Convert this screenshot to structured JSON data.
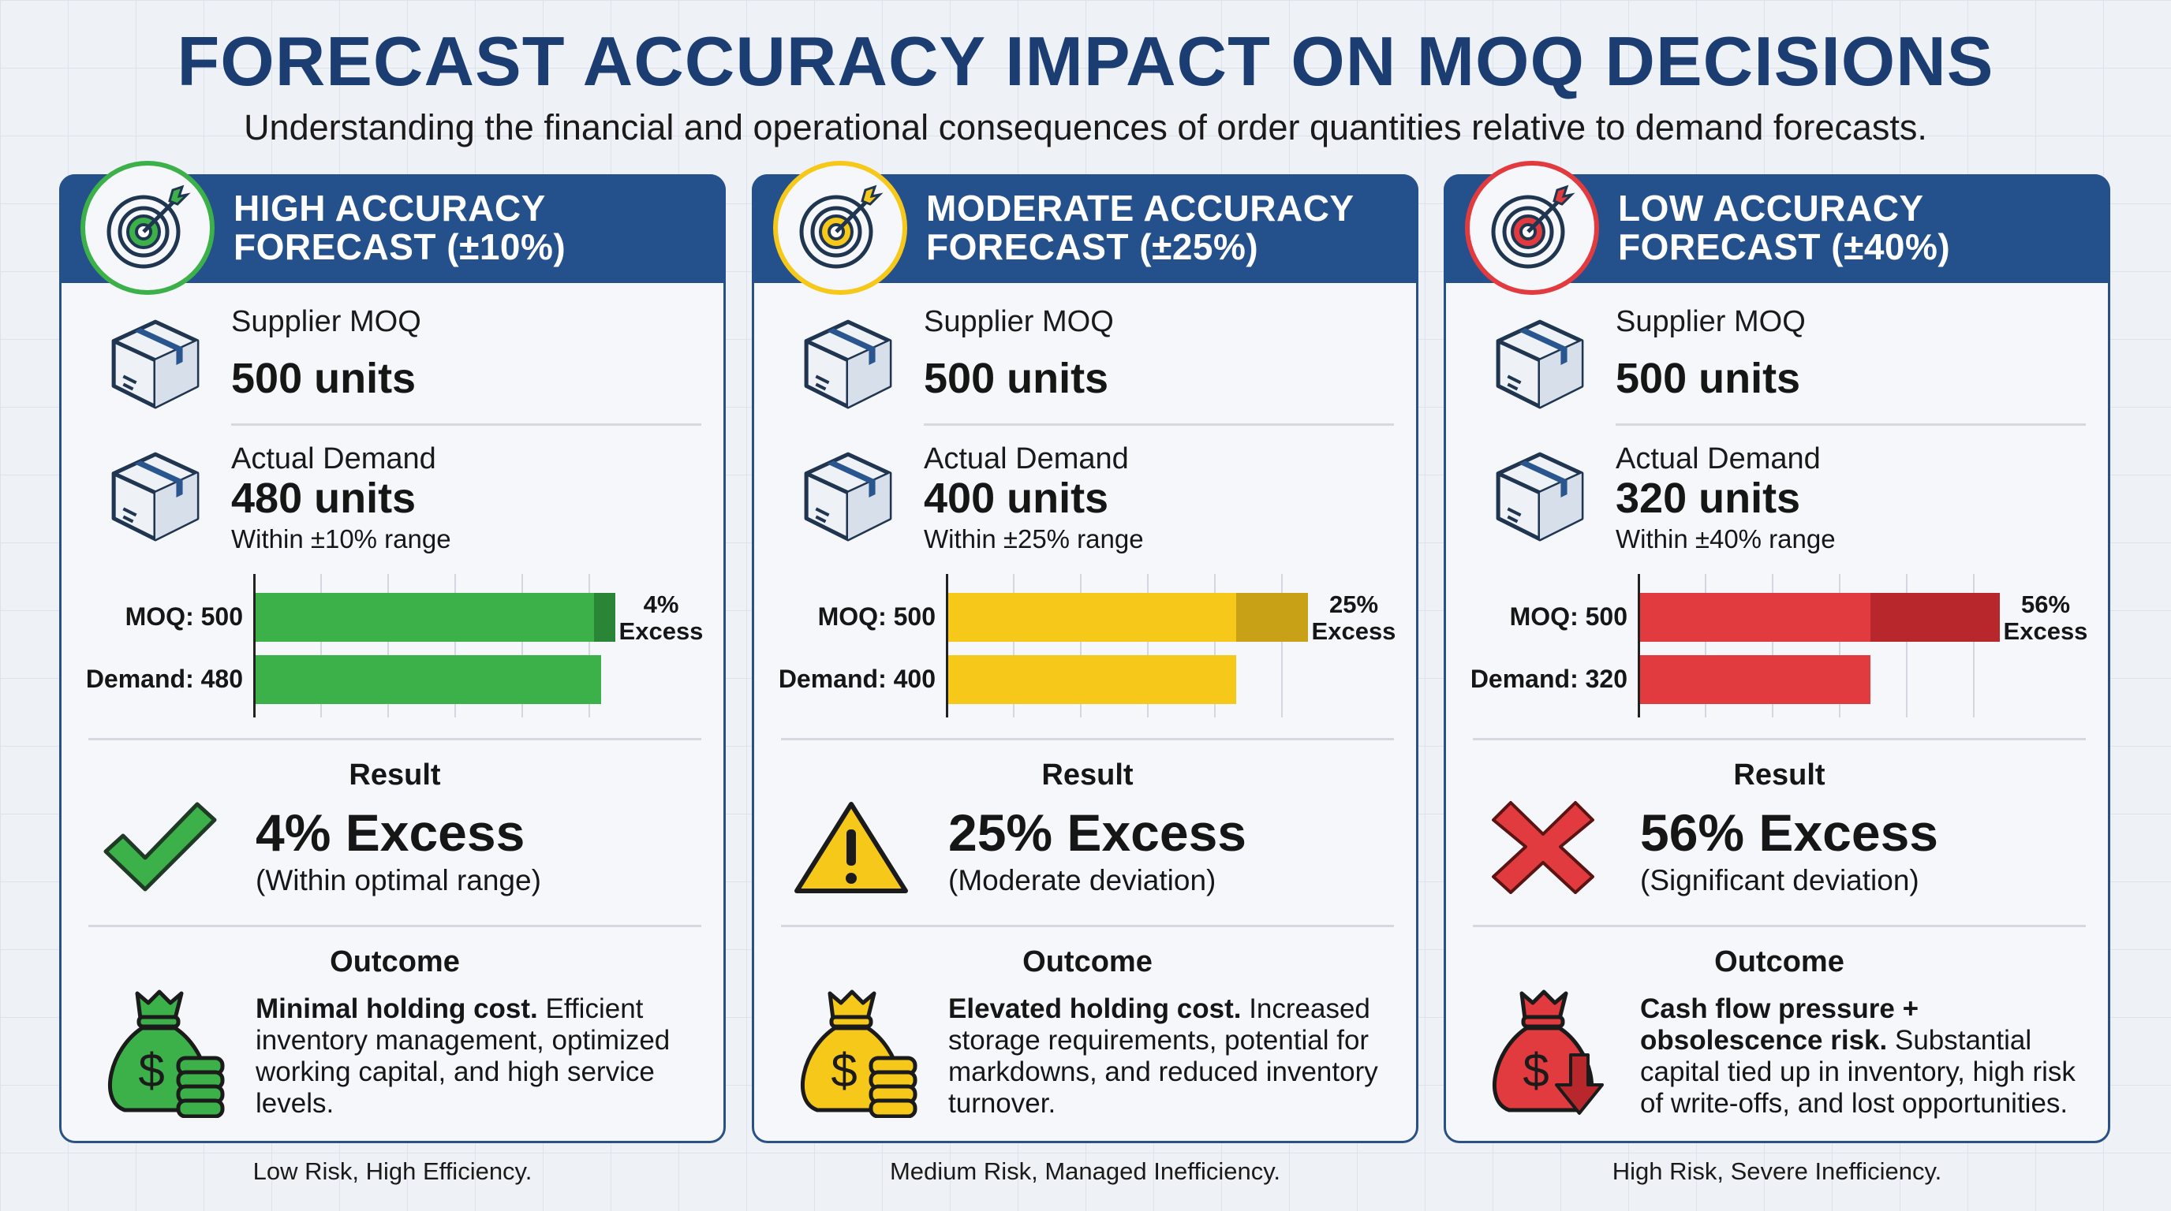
{
  "header": {
    "title": "FORECAST ACCURACY IMPACT ON MOQ DECISIONS",
    "subtitle": "Understanding the financial and operational consequences of order quantities relative to demand forecasts."
  },
  "cards": [
    {
      "title_line1": "HIGH ACCURACY",
      "title_line2": "FORECAST (±10%)",
      "accent": "#3cb14a",
      "accent_dark": "#2a8636",
      "badge_icon": "target-icon",
      "moq_label": "Supplier MOQ",
      "moq_value": "500 units",
      "demand_label": "Actual Demand",
      "demand_value": "480 units",
      "demand_note": "Within ±10% range",
      "bar_moq_label": "MOQ: 500",
      "bar_demand_label": "Demand: 480",
      "moq": 500,
      "demand": 480,
      "excess_pct": "4%",
      "excess_word": "Excess",
      "result_heading": "Result",
      "result_icon": "checkmark-icon",
      "result_value": "4% Excess",
      "result_note": "(Within optimal range)",
      "outcome_heading": "Outcome",
      "outcome_icon": "money-bag-coins-icon",
      "outcome_bold": "Minimal holding cost.",
      "outcome_text": "Efficient inventory management, optimized working capital, and high service levels.",
      "footer": "Low Risk, High Efficiency."
    },
    {
      "title_line1": "MODERATE ACCURACY",
      "title_line2": "FORECAST (±25%)",
      "accent": "#f6c819",
      "accent_dark": "#c9a116",
      "badge_icon": "target-icon",
      "moq_label": "Supplier MOQ",
      "moq_value": "500 units",
      "demand_label": "Actual Demand",
      "demand_value": "400 units",
      "demand_note": "Within ±25% range",
      "bar_moq_label": "MOQ: 500",
      "bar_demand_label": "Demand: 400",
      "moq": 500,
      "demand": 400,
      "excess_pct": "25%",
      "excess_word": "Excess",
      "result_heading": "Result",
      "result_icon": "warning-icon",
      "result_value": "25% Excess",
      "result_note": "(Moderate deviation)",
      "outcome_heading": "Outcome",
      "outcome_icon": "money-bag-coins-icon",
      "outcome_bold": "Elevated holding cost.",
      "outcome_text": "Increased storage requirements, potential for markdowns, and reduced inventory turnover.",
      "footer": "Medium Risk, Managed Inefficiency."
    },
    {
      "title_line1": "LOW ACCURACY",
      "title_line2": "FORECAST (±40%)",
      "accent": "#e23b3f",
      "accent_dark": "#b8272c",
      "badge_icon": "target-icon",
      "moq_label": "Supplier MOQ",
      "moq_value": "500 units",
      "demand_label": "Actual Demand",
      "demand_value": "320 units",
      "demand_note": "Within ±40% range",
      "bar_moq_label": "MOQ: 500",
      "bar_demand_label": "Demand: 320",
      "moq": 500,
      "demand": 320,
      "excess_pct": "56%",
      "excess_word": "Excess",
      "result_heading": "Result",
      "result_icon": "x-mark-icon",
      "result_value": "56% Excess",
      "result_note": "(Significant deviation)",
      "outcome_heading": "Outcome",
      "outcome_icon": "money-bag-down-arrow-icon",
      "outcome_bold": "Cash flow pressure + obsolescence risk.",
      "outcome_text": "Substantial capital tied up in inventory, high risk of write-offs, and lost opportunities.",
      "footer": "High Risk, Severe Inefficiency."
    }
  ],
  "colors": {
    "navy": "#24508c",
    "title": "#1b3d72"
  }
}
